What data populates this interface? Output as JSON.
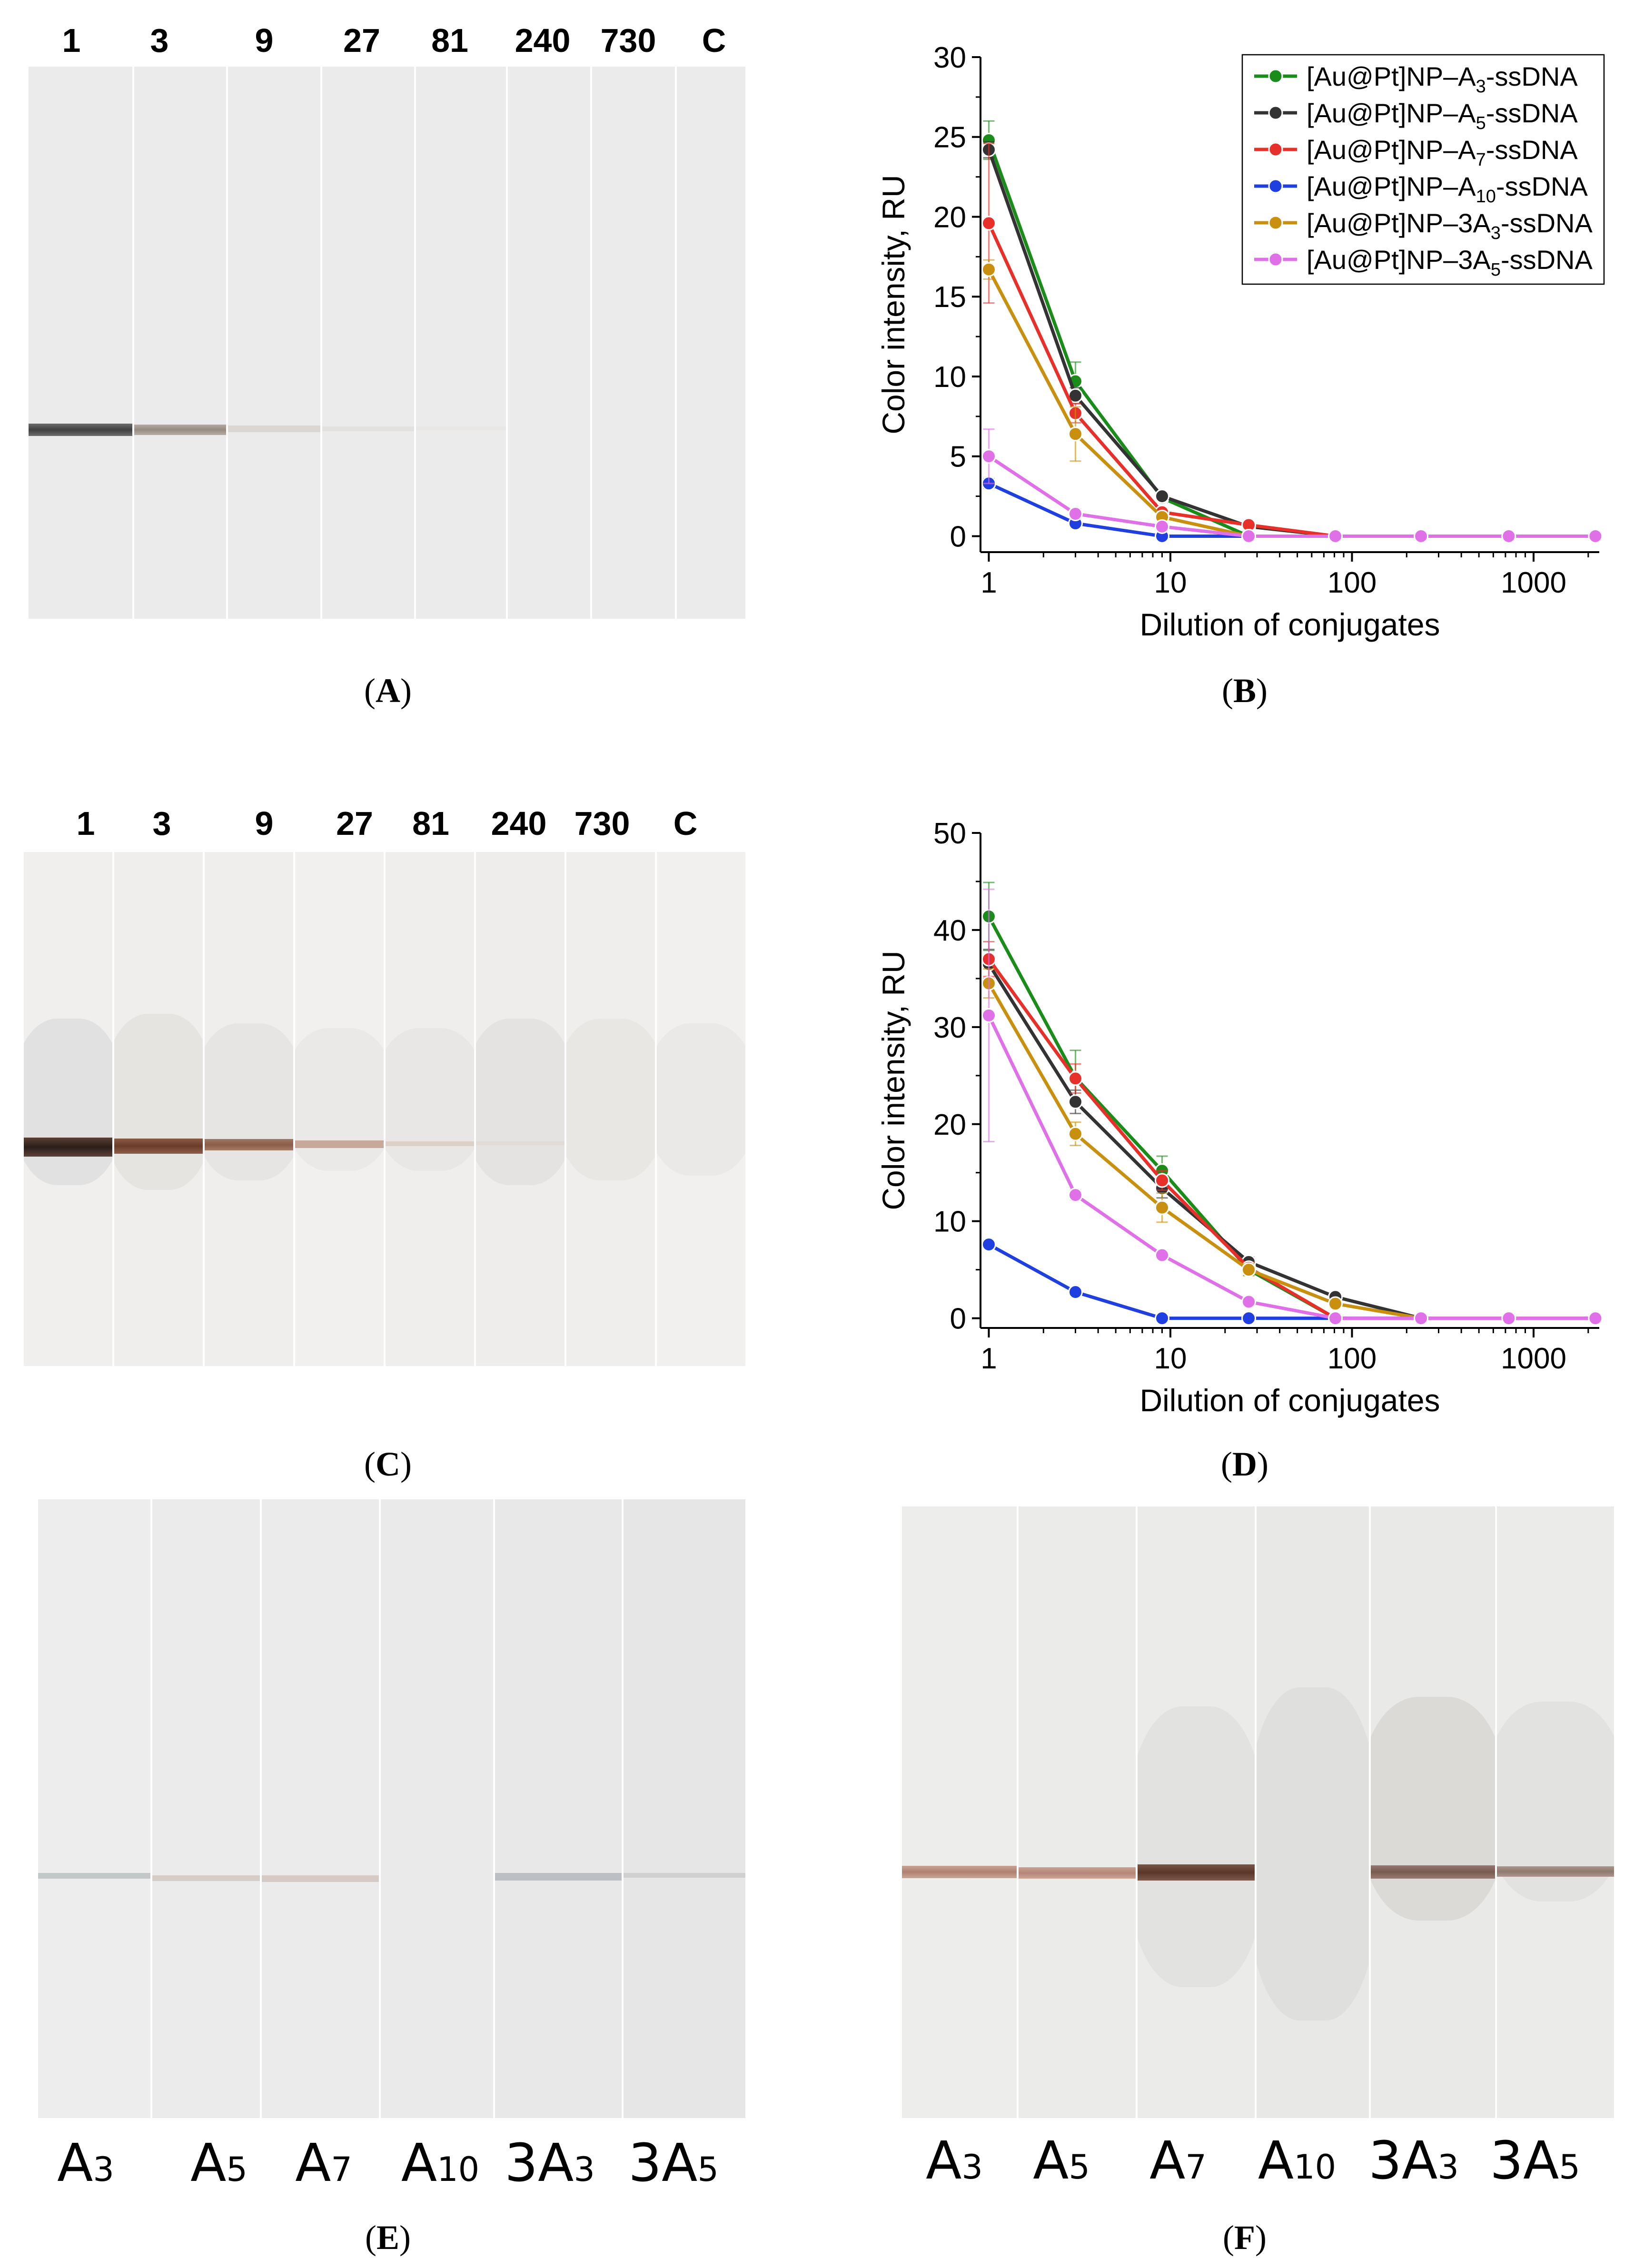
{
  "panelA": {
    "lane_labels": [
      "1",
      "3",
      "9",
      "27",
      "81",
      "240",
      "730",
      "C"
    ],
    "caption_letter": "A"
  },
  "panelC": {
    "lane_labels": [
      "1",
      "3",
      "9",
      "27",
      "81",
      "240",
      "730",
      "C"
    ],
    "caption_letter": "C"
  },
  "panelE": {
    "lane_labels": [
      {
        "base": "A",
        "sub": "3"
      },
      {
        "base": "A",
        "sub": "5"
      },
      {
        "base": "A",
        "sub": "7"
      },
      {
        "base": "A",
        "sub": "10"
      },
      {
        "base": "3A",
        "sub": "3"
      },
      {
        "base": "3A",
        "sub": "5"
      }
    ],
    "caption_letter": "E"
  },
  "panelF": {
    "lane_labels": [
      {
        "base": "A",
        "sub": "3"
      },
      {
        "base": "A",
        "sub": "5"
      },
      {
        "base": "A",
        "sub": "7"
      },
      {
        "base": "A",
        "sub": "10"
      },
      {
        "base": "3A",
        "sub": "3"
      },
      {
        "base": "3A",
        "sub": "5"
      }
    ],
    "caption_letter": "F"
  },
  "chart_data": [
    {
      "panel": "B",
      "type": "line",
      "caption_letter": "B",
      "xlabel": "Dilution of conjugates",
      "ylabel": "Color intensity, RU",
      "xscale": "log",
      "xlim": [
        0.9,
        2300
      ],
      "ylim": [
        -1,
        30
      ],
      "yticks": [
        0,
        5,
        10,
        15,
        20,
        25,
        30
      ],
      "xticks": [
        1,
        10,
        100,
        1000
      ],
      "xtick_labels": [
        "1",
        "10",
        "100",
        "1000"
      ],
      "legend_position": "top-right",
      "x": [
        1,
        3,
        9,
        27,
        81,
        240,
        730,
        2190
      ],
      "series": [
        {
          "name": "[Au@Pt]NP–A",
          "sub": "3",
          "suffix": "-ssDNA",
          "color": "#1a8c1a",
          "values": [
            24.8,
            9.7,
            2.4,
            0,
            0,
            0,
            0,
            0
          ],
          "err": [
            1.2,
            1.2,
            0.3,
            0,
            0,
            0,
            0,
            0
          ]
        },
        {
          "name": "[Au@Pt]NP–A",
          "sub": "5",
          "suffix": "-ssDNA",
          "color": "#333333",
          "values": [
            24.2,
            8.8,
            2.5,
            0.6,
            0,
            0,
            0,
            0
          ],
          "err": [
            0.5,
            0.5,
            0.2,
            0.1,
            0,
            0,
            0,
            0
          ]
        },
        {
          "name": "[Au@Pt]NP–A",
          "sub": "7",
          "suffix": "-ssDNA",
          "color": "#e8302a",
          "values": [
            19.6,
            7.7,
            1.5,
            0.7,
            0,
            0,
            0,
            0
          ],
          "err": [
            5.0,
            0.6,
            0.2,
            0.1,
            0,
            0,
            0,
            0
          ]
        },
        {
          "name": "[Au@Pt]NP–A",
          "sub": "10",
          "suffix": "-ssDNA",
          "color": "#1f3fe0",
          "values": [
            3.3,
            0.8,
            0,
            0,
            0,
            0,
            0,
            0
          ],
          "err": [
            0.3,
            0.1,
            0,
            0,
            0,
            0,
            0,
            0
          ]
        },
        {
          "name": "[Au@Pt]NP–3A",
          "sub": "3",
          "suffix": "-ssDNA",
          "color": "#c8900e",
          "values": [
            16.7,
            6.4,
            1.2,
            0,
            0,
            0,
            0,
            0
          ],
          "err": [
            0.6,
            1.7,
            0.3,
            0,
            0,
            0,
            0,
            0
          ]
        },
        {
          "name": "[Au@Pt]NP–3A",
          "sub": "5",
          "suffix": "-ssDNA",
          "color": "#e070e8",
          "values": [
            5.0,
            1.4,
            0.6,
            0,
            0,
            0,
            0,
            0
          ],
          "err": [
            1.7,
            0.3,
            0.2,
            0,
            0,
            0,
            0,
            0
          ]
        }
      ]
    },
    {
      "panel": "D",
      "type": "line",
      "caption_letter": "D",
      "xlabel": "Dilution of conjugates",
      "ylabel": "Color intensity, RU",
      "xscale": "log",
      "xlim": [
        0.9,
        2300
      ],
      "ylim": [
        -1,
        50
      ],
      "yticks": [
        0,
        10,
        20,
        30,
        40,
        50
      ],
      "xticks": [
        1,
        10,
        100,
        1000
      ],
      "xtick_labels": [
        "1",
        "10",
        "100",
        "1000"
      ],
      "x": [
        1,
        3,
        9,
        27,
        81,
        240,
        730,
        2190
      ],
      "series": [
        {
          "name": "[Au@Pt]NP–A3-ssDNA",
          "color": "#1a8c1a",
          "values": [
            41.4,
            24.8,
            15.2,
            5.0,
            0,
            0,
            0,
            0
          ],
          "err": [
            3.5,
            2.8,
            1.5,
            0.6,
            0,
            0,
            0,
            0
          ]
        },
        {
          "name": "[Au@Pt]NP–A5-ssDNA",
          "color": "#333333",
          "values": [
            36.5,
            22.3,
            13.4,
            5.8,
            2.2,
            0,
            0,
            0
          ],
          "err": [
            1.5,
            1.2,
            1.0,
            0.5,
            0.3,
            0,
            0,
            0
          ]
        },
        {
          "name": "[Au@Pt]NP–A7-ssDNA",
          "color": "#e8302a",
          "values": [
            37.0,
            24.7,
            14.2,
            5.2,
            0,
            0,
            0,
            0
          ],
          "err": [
            1.8,
            1.5,
            1.0,
            0.6,
            0,
            0,
            0,
            0
          ]
        },
        {
          "name": "[Au@Pt]NP–A10-ssDNA",
          "color": "#1f3fe0",
          "values": [
            7.6,
            2.7,
            0,
            0,
            0,
            0,
            0,
            0
          ],
          "err": [
            0.4,
            0.2,
            0,
            0,
            0,
            0,
            0,
            0
          ]
        },
        {
          "name": "[Au@Pt]NP–3A3-ssDNA",
          "color": "#c8900e",
          "values": [
            34.5,
            19.0,
            11.4,
            5.0,
            1.5,
            0,
            0,
            0
          ],
          "err": [
            1.5,
            1.2,
            1.5,
            0.6,
            0.3,
            0,
            0,
            0
          ]
        },
        {
          "name": "[Au@Pt]NP–3A5-ssDNA",
          "color": "#e070e8",
          "values": [
            31.2,
            12.7,
            6.5,
            1.7,
            0,
            0,
            0,
            0
          ],
          "err": [
            13.0,
            0.5,
            0.4,
            0.2,
            0,
            0,
            0,
            0
          ]
        }
      ]
    }
  ]
}
